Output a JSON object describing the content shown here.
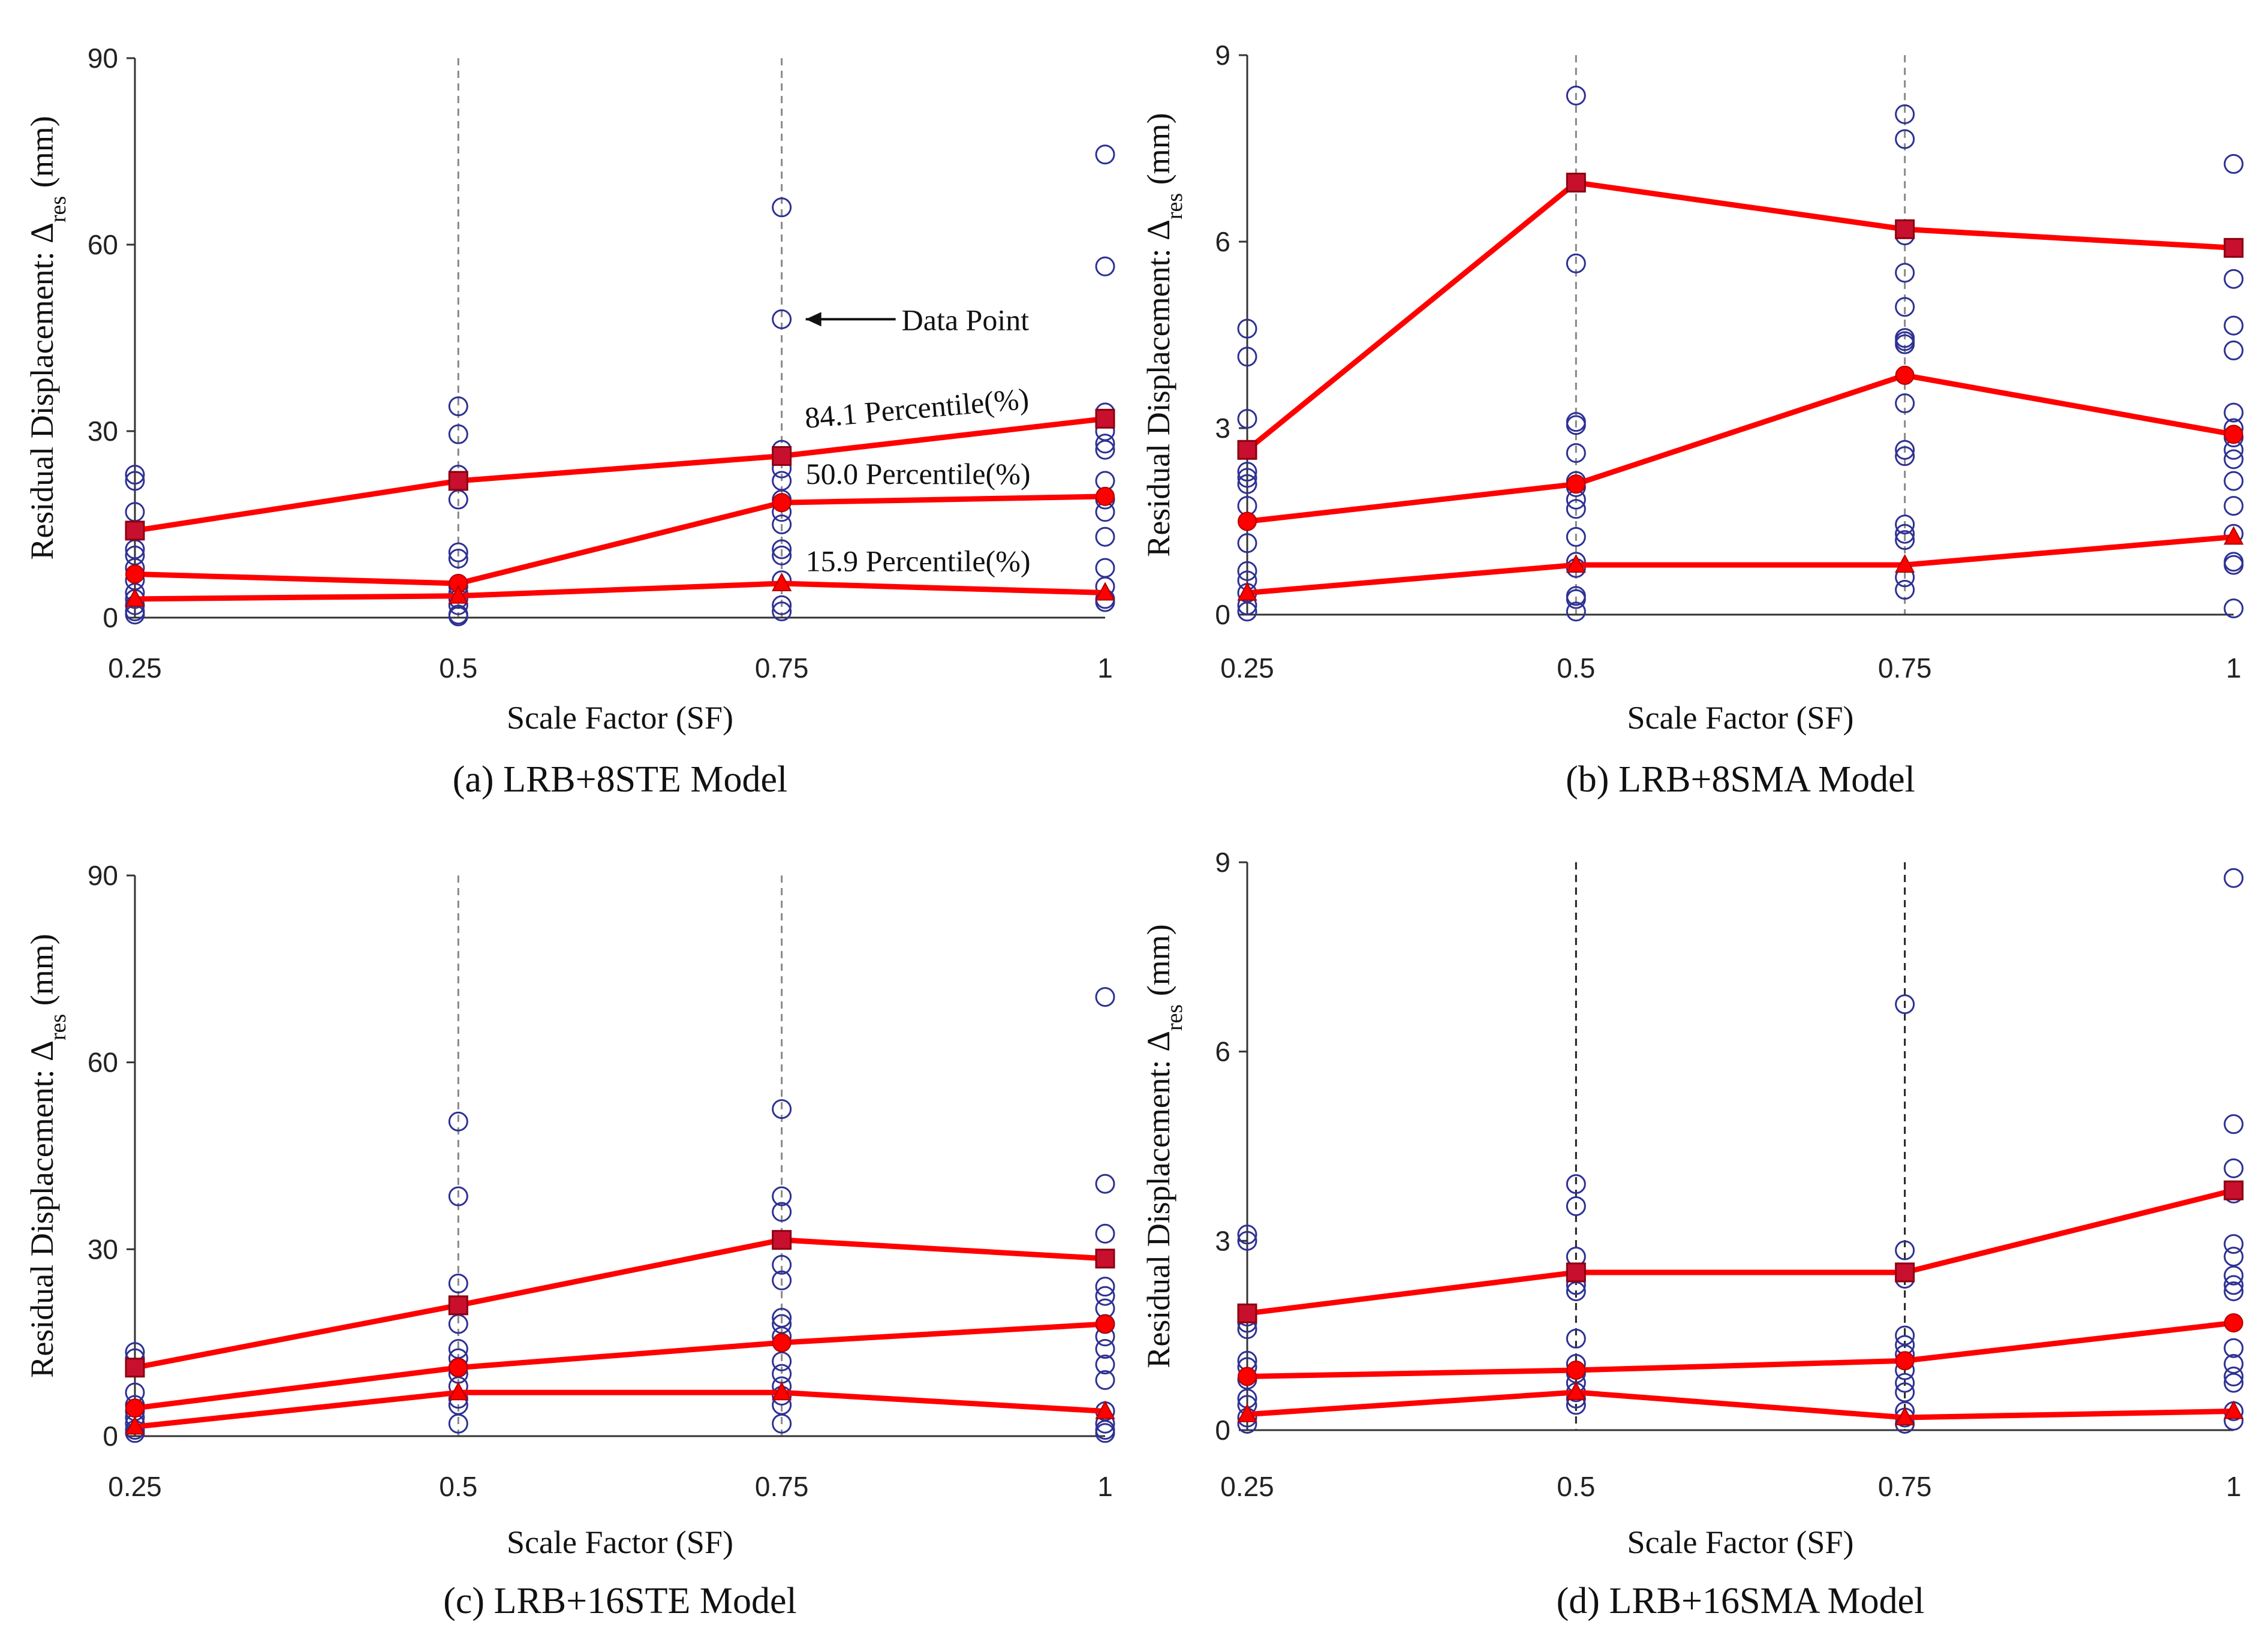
{
  "colors": {
    "percentile_line": "#ff0000",
    "percentile_marker": "#c8102e",
    "data_point": "#2e3192",
    "grid": "#888888",
    "axis": "#333333"
  },
  "chart_data": [
    {
      "type": "scatter",
      "caption": "(a) LRB+8STE Model",
      "xlabel": "Scale Factor (SF)",
      "ylabel_main": "Residual Displacement: Δ",
      "ylabel_sub": "res",
      "ylabel_unit": " (mm)",
      "x": [
        0.25,
        0.5,
        0.75,
        1
      ],
      "x_tick_labels": [
        "0.25",
        "0.5",
        "0.75",
        "1"
      ],
      "ylim": [
        0,
        90
      ],
      "y_ticks": [
        0,
        30,
        60,
        90
      ],
      "y_tick_labels": [
        "0",
        "30",
        "60",
        "90"
      ],
      "gridlines": "dashed-vertical",
      "data_points": [
        [
          23,
          22,
          17,
          11,
          10,
          8,
          6,
          4,
          3,
          2,
          1,
          0.5
        ],
        [
          34,
          29.5,
          23,
          19,
          10.5,
          9.5,
          5,
          4,
          3,
          2,
          0.5,
          0.2
        ],
        [
          66,
          48,
          27,
          24,
          22,
          19,
          17,
          15,
          11,
          10,
          6,
          2,
          1
        ],
        [
          74.5,
          56.5,
          33,
          30,
          28,
          27,
          22,
          19,
          17,
          13,
          8,
          5,
          3,
          2.5
        ]
      ],
      "series": [
        {
          "name": "84.1 Percentile(%)",
          "marker": "square",
          "values": [
            14,
            22,
            26,
            32
          ]
        },
        {
          "name": "50.0 Percentile(%)",
          "marker": "circle",
          "values": [
            7,
            5.5,
            18.5,
            19.5
          ]
        },
        {
          "name": "15.9 Percentile(%)",
          "marker": "triangle",
          "values": [
            3,
            3.5,
            5.5,
            4
          ]
        }
      ],
      "annotations": {
        "data_point_label": "Data Point",
        "percentile_84": "84.1 Percentile(%)",
        "percentile_50": "50.0 Percentile(%)",
        "percentile_15": "15.9 Percentile(%)"
      }
    },
    {
      "type": "scatter",
      "caption": "(b) LRB+8SMA Model",
      "xlabel": "Scale Factor (SF)",
      "ylabel_main": "Residual Displacement: Δ",
      "ylabel_sub": "res",
      "ylabel_unit": " (mm)",
      "x": [
        0.25,
        0.5,
        0.75,
        1
      ],
      "x_tick_labels": [
        "0.25",
        "0.5",
        "0.75",
        "1"
      ],
      "ylim": [
        0,
        9
      ],
      "y_ticks": [
        0,
        3,
        6,
        9
      ],
      "y_tick_labels": [
        "0",
        "3",
        "6",
        "9"
      ],
      "gridlines": "dashed-vertical",
      "data_points": [
        [
          4.6,
          4.15,
          3.15,
          2.3,
          2.2,
          2.1,
          1.75,
          1.15,
          0.7,
          0.55,
          0.35,
          0.15,
          0.05
        ],
        [
          8.35,
          6.95,
          5.65,
          3.1,
          3.05,
          2.6,
          2.15,
          2.05,
          1.85,
          1.7,
          1.25,
          0.85,
          0.75,
          0.3,
          0.25,
          0.05
        ],
        [
          8.05,
          7.65,
          6.1,
          5.5,
          4.95,
          4.45,
          4.4,
          4.35,
          3.4,
          2.65,
          2.55,
          1.45,
          1.3,
          1.2,
          0.6,
          0.4
        ],
        [
          7.25,
          5.9,
          5.4,
          4.65,
          4.25,
          3.25,
          3.0,
          2.85,
          2.65,
          2.5,
          2.15,
          1.75,
          1.3,
          0.85,
          0.8,
          0.1
        ]
      ],
      "series": [
        {
          "name": "84.1 Percentile(%)",
          "marker": "square",
          "values": [
            2.65,
            6.95,
            6.2,
            5.9
          ]
        },
        {
          "name": "50.0 Percentile(%)",
          "marker": "circle",
          "values": [
            1.5,
            2.1,
            3.85,
            2.9
          ]
        },
        {
          "name": "15.9 Percentile(%)",
          "marker": "triangle",
          "values": [
            0.35,
            0.8,
            0.8,
            1.25
          ]
        }
      ]
    },
    {
      "type": "scatter",
      "caption": "(c) LRB+16STE Model",
      "xlabel": "Scale Factor (SF)",
      "ylabel_main": "Residual Displacement: Δ",
      "ylabel_sub": "res",
      "ylabel_unit": " (mm)",
      "x": [
        0.25,
        0.5,
        0.75,
        1
      ],
      "x_tick_labels": [
        "0.25",
        "0.5",
        "0.75",
        "1"
      ],
      "ylim": [
        0,
        90
      ],
      "y_ticks": [
        0,
        30,
        60,
        90
      ],
      "y_tick_labels": [
        "0",
        "30",
        "60",
        "90"
      ],
      "gridlines": "dashed-vertical",
      "data_points": [
        [
          13.5,
          12.5,
          11,
          7,
          5,
          4,
          3,
          2,
          1,
          0.5
        ],
        [
          50.5,
          38.5,
          24.5,
          21,
          18,
          14,
          12.5,
          11,
          10,
          8,
          6,
          5,
          2
        ],
        [
          52.5,
          38.5,
          36,
          31.5,
          27.5,
          25,
          19,
          18,
          16,
          12,
          10,
          8,
          6.5,
          5,
          2
        ],
        [
          70.5,
          40.5,
          32.5,
          24,
          22.5,
          20.5,
          18,
          16,
          14,
          11.5,
          9,
          4,
          2,
          1,
          0.5
        ]
      ],
      "series": [
        {
          "name": "84.1 Percentile(%)",
          "marker": "square",
          "values": [
            11,
            21,
            31.5,
            28.5
          ]
        },
        {
          "name": "50.0 Percentile(%)",
          "marker": "circle",
          "values": [
            4.5,
            11,
            15,
            18
          ]
        },
        {
          "name": "15.9 Percentile(%)",
          "marker": "triangle",
          "values": [
            1.5,
            7,
            7,
            4
          ]
        }
      ]
    },
    {
      "type": "scatter",
      "caption": "(d) LRB+16SMA Model",
      "xlabel": "Scale Factor (SF)",
      "ylabel_main": "Residual Displacement: Δ",
      "ylabel_sub": "res",
      "ylabel_unit": " (mm)",
      "x": [
        0.25,
        0.5,
        0.75,
        1
      ],
      "x_tick_labels": [
        "0.25",
        "0.5",
        "0.75",
        "1"
      ],
      "ylim": [
        0,
        9
      ],
      "y_ticks": [
        0,
        3,
        6,
        9
      ],
      "y_tick_labels": [
        "0",
        "3",
        "6",
        "9"
      ],
      "gridlines": "dashed-vertical",
      "data_points": [
        [
          3.1,
          3.0,
          1.8,
          1.7,
          1.6,
          1.1,
          1.0,
          0.8,
          0.5,
          0.4,
          0.2,
          0.1
        ],
        [
          3.9,
          3.55,
          2.75,
          2.5,
          2.3,
          2.2,
          1.45,
          1.05,
          0.9,
          0.75,
          0.6,
          0.5,
          0.4
        ],
        [
          6.75,
          2.85,
          2.4,
          1.5,
          1.35,
          1.2,
          0.95,
          0.75,
          0.6,
          0.3,
          0.2,
          0.1
        ],
        [
          8.75,
          4.85,
          4.15,
          3.75,
          2.95,
          2.75,
          2.45,
          2.3,
          2.2,
          1.3,
          1.05,
          0.85,
          0.75,
          0.3,
          0.15
        ]
      ],
      "series": [
        {
          "name": "84.1 Percentile(%)",
          "marker": "square",
          "values": [
            1.85,
            2.5,
            2.5,
            3.8
          ]
        },
        {
          "name": "50.0 Percentile(%)",
          "marker": "circle",
          "values": [
            0.85,
            0.95,
            1.1,
            1.7
          ]
        },
        {
          "name": "15.9 Percentile(%)",
          "marker": "triangle",
          "values": [
            0.25,
            0.6,
            0.2,
            0.3
          ]
        }
      ]
    }
  ]
}
